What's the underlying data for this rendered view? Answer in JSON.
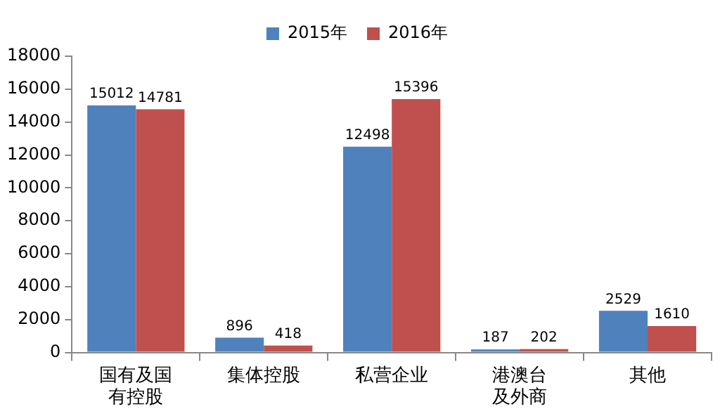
{
  "chart_data": {
    "type": "bar",
    "categories": [
      "国有及国有控股",
      "集体控股",
      "私营企业",
      "港澳台及外商",
      "其他"
    ],
    "series": [
      {
        "name": "2015年",
        "color": "#4f81bd",
        "values": [
          15012,
          896,
          12498,
          187,
          2529
        ]
      },
      {
        "name": "2016年",
        "color": "#c0504d",
        "values": [
          14781,
          418,
          15396,
          202,
          1610
        ]
      }
    ],
    "ylim": [
      0,
      18000
    ],
    "yticks": [
      0,
      2000,
      4000,
      6000,
      8000,
      10000,
      12000,
      14000,
      16000,
      18000
    ],
    "grid": false,
    "legend": "top",
    "data_labels": true
  }
}
